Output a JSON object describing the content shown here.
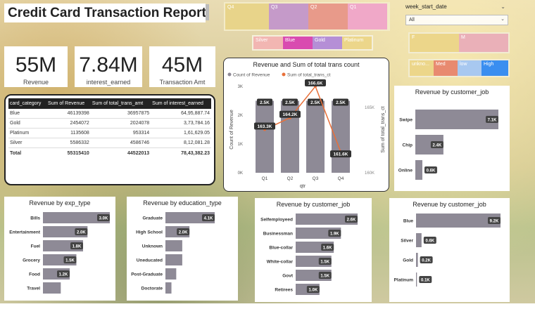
{
  "title": "Credit Card Transaction Report",
  "kpis": [
    {
      "value": "55M",
      "label": "Revenue"
    },
    {
      "value": "7.84M",
      "label": "interest_earned"
    },
    {
      "value": "45M",
      "label": "Transaction Amt"
    }
  ],
  "qtr_slicer": [
    "Q4",
    "Q3",
    "Q2",
    "Q1"
  ],
  "qtr_colors": [
    "#e8d48a",
    "#c59ac9",
    "#e89a8a",
    "#f0a8c8"
  ],
  "category_slicer": [
    "Silver",
    "Blue",
    "Gold",
    "Platinum"
  ],
  "category_colors": [
    "#f2b6b2",
    "#d94bb0",
    "#b58fd6",
    "#ecd68a"
  ],
  "week_filter": {
    "label": "week_start_date",
    "value": "All"
  },
  "gender_slicer": [
    "F",
    "M"
  ],
  "gender_colors": [
    "#ecd68a",
    "#eab0b8"
  ],
  "income_slicer": [
    "unkno...",
    "Med",
    "low",
    "High"
  ],
  "income_colors": [
    "#ecd68a",
    "#e88a70",
    "#a8c8f0",
    "#3a8ef0"
  ],
  "table": {
    "headers": [
      "card_category",
      "Sum of Revenue",
      "Sum of total_trans_amt",
      "Sum of interest_earned"
    ],
    "rows": [
      [
        "Blue",
        "46139398",
        "36957875",
        "64,95,887.74"
      ],
      [
        "Gold",
        "2454072",
        "2024078",
        "3,73,784.16"
      ],
      [
        "Platinum",
        "1135608",
        "953314",
        "1,61,629.05"
      ],
      [
        "Silver",
        "5586332",
        "4586746",
        "8,12,081.28"
      ]
    ],
    "total": [
      "Total",
      "55315410",
      "44522013",
      "78,43,382.23"
    ]
  },
  "chart_data": [
    {
      "type": "combo",
      "title": "Revenue and Sum of total trans count",
      "legend": [
        "Count of Revenue",
        "Sum of total_trans_ct"
      ],
      "colors": [
        "#8e8a96",
        "#e8703a"
      ],
      "categories": [
        "Q1",
        "Q2",
        "Q3",
        "Q4"
      ],
      "series": [
        {
          "name": "Count of Revenue",
          "kind": "bar",
          "values": [
            2500,
            2500,
            2500,
            2500
          ],
          "labels": [
            "2.5K",
            "2.5K",
            "2.5K",
            "2.5K"
          ]
        },
        {
          "name": "Sum of total_trans_ct",
          "kind": "line",
          "values": [
            163300,
            164200,
            166600,
            161600
          ],
          "labels": [
            "163.3K",
            "164.2K",
            "166.6K",
            "161.6K"
          ]
        }
      ],
      "xlabel": "qtr",
      "ylabel": "Count of Revenue",
      "y2label": "Sum of total_trans_ct",
      "yticks": [
        "0K",
        "1K",
        "2K",
        "3K"
      ],
      "y2ticks": [
        "160K",
        "165K"
      ],
      "ylim": [
        0,
        3000
      ],
      "y2lim": [
        160000,
        166600
      ]
    },
    {
      "type": "bar",
      "orientation": "horizontal",
      "title": "Revenue by customer_job",
      "categories": [
        "Swipe",
        "Chip",
        "Online"
      ],
      "values": [
        7100,
        2400,
        600
      ],
      "labels": [
        "7.1K",
        "2.4K",
        "0.6K"
      ]
    },
    {
      "type": "bar",
      "orientation": "horizontal",
      "title": "Revenue by exp_type",
      "categories": [
        "Bills",
        "Entertainment",
        "Fuel",
        "Grocery",
        "Food",
        "Travel"
      ],
      "values": [
        3000,
        2000,
        1800,
        1500,
        1200,
        800
      ],
      "labels": [
        "3.0K",
        "2.0K",
        "1.8K",
        "1.5K",
        "1.2K",
        ""
      ]
    },
    {
      "type": "bar",
      "orientation": "horizontal",
      "title": "Revenue by education_type",
      "categories": [
        "Graduate",
        "High School",
        "Unknown",
        "Uneducated",
        "Post-Graduate",
        "Doctorate"
      ],
      "values": [
        4100,
        2000,
        1400,
        1400,
        900,
        500
      ],
      "labels": [
        "4.1K",
        "2.0K",
        "",
        "",
        "",
        ""
      ]
    },
    {
      "type": "bar",
      "orientation": "horizontal",
      "title": "Revenue by customer_job",
      "categories": [
        "Selfemployeed",
        "Businessman",
        "Blue-collar",
        "White-collar",
        "Govt",
        "Retirees"
      ],
      "values": [
        2600,
        1900,
        1600,
        1500,
        1500,
        1000
      ],
      "labels": [
        "2.6K",
        "1.9K",
        "1.6K",
        "1.5K",
        "1.5K",
        "1.0K"
      ]
    },
    {
      "type": "bar",
      "orientation": "horizontal",
      "title": "Revenue by customer_job",
      "categories": [
        "Blue",
        "Silver",
        "Gold",
        "Platinum"
      ],
      "values": [
        9200,
        600,
        200,
        100
      ],
      "labels": [
        "9.2K",
        "0.6K",
        "0.2K",
        "0.1K"
      ]
    }
  ]
}
